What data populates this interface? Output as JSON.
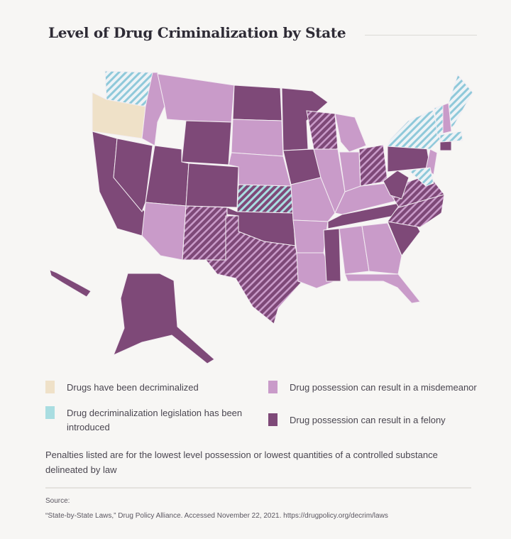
{
  "title": "Level of Drug Criminalization by State",
  "colors": {
    "decriminalized": "#efe1c8",
    "legislation_introduced": "#a9dde1",
    "misdemeanor": "#c99bc9",
    "felony": "#7e4978",
    "background": "#f7f6f4",
    "state_border": "#f3eef2"
  },
  "legend": [
    {
      "key": "decriminalized",
      "label": "Drugs have been decriminalized"
    },
    {
      "key": "misdemeanor",
      "label": "Drug possession can result in a misdemeanor"
    },
    {
      "key": "legislation_introduced",
      "label": "Drug decriminalization legislation has been introduced"
    },
    {
      "key": "felony",
      "label": "Drug possession can result in a felony"
    }
  ],
  "states": {
    "WA": "legislation_introduced",
    "OR": "decriminalized",
    "CA": "felony",
    "NV": "felony",
    "ID": "misdemeanor",
    "MT": "misdemeanor",
    "WY": "felony",
    "UT": "felony",
    "AZ": "misdemeanor",
    "CO": "felony",
    "NM": "felony_misdemeanor_hatch",
    "ND": "felony",
    "SD": "misdemeanor",
    "NE": "misdemeanor",
    "KS": "felony_legislation_hatch",
    "OK": "felony",
    "TX": "felony_misdemeanor_hatch",
    "MN": "felony",
    "IA": "felony",
    "MO": "misdemeanor",
    "AR": "misdemeanor",
    "LA": "misdemeanor",
    "WI": "felony_misdemeanor_hatch",
    "IL": "misdemeanor",
    "MI": "misdemeanor",
    "IN": "misdemeanor",
    "OH": "felony_misdemeanor_hatch",
    "KY": "misdemeanor",
    "TN": "felony",
    "MS": "felony",
    "AL": "misdemeanor",
    "GA": "misdemeanor",
    "FL": "misdemeanor",
    "SC": "felony",
    "NC": "felony_misdemeanor_hatch",
    "VA": "felony_misdemeanor_hatch",
    "WV": "felony",
    "PA": "felony",
    "NY": "legislation_introduced",
    "NJ": "misdemeanor",
    "MD": "legislation_introduced",
    "VT": "legislation_introduced",
    "NH": "misdemeanor",
    "ME": "legislation_introduced",
    "MA": "legislation_introduced",
    "CT": "felony",
    "AK": "felony",
    "HI": "felony"
  },
  "note": "Penalties listed are for the lowest level possession or lowest quantities of a controlled substance delineated by law",
  "source_label": "Source:",
  "source": "“State-by-State Laws,” Drug Policy Alliance. Accessed November 22, 2021. https://drugpolicy.org/decrim/laws"
}
